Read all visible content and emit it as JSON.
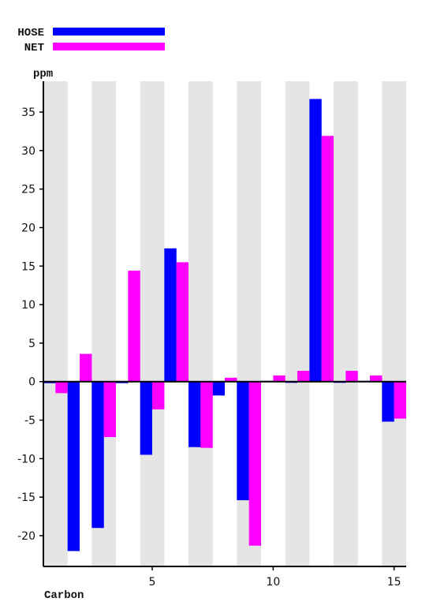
{
  "chart_data": {
    "type": "bar",
    "xlabel": "Carbon",
    "ylabel": "ppm",
    "x": [
      1,
      2,
      3,
      4,
      5,
      6,
      7,
      8,
      9,
      10,
      11,
      12,
      13,
      14,
      15
    ],
    "xticks": [
      5,
      10,
      15
    ],
    "xlim": [
      0.5,
      15.5
    ],
    "ylim": [
      -24,
      39
    ],
    "yticks": [
      -20,
      -15,
      -10,
      -5,
      0,
      5,
      10,
      15,
      20,
      25,
      30,
      35
    ],
    "grid": "alternating-column-bands",
    "legend_position": "top-left",
    "series": [
      {
        "name": "HOSE",
        "color": "#0000ff",
        "values": [
          -0.2,
          -22.0,
          -19.0,
          -0.2,
          -9.5,
          17.3,
          -8.5,
          -1.8,
          -15.4,
          0.1,
          0.0,
          36.7,
          0.0,
          0.1,
          -5.2
        ]
      },
      {
        "name": "NET",
        "color": "#ff00ff",
        "values": [
          -1.5,
          3.6,
          -7.2,
          14.4,
          -3.6,
          15.5,
          -8.6,
          0.5,
          -21.3,
          0.8,
          1.4,
          31.9,
          1.4,
          0.8,
          -4.8
        ]
      }
    ]
  },
  "colors": {
    "band": "#e5e5e5",
    "axis": "#000000"
  }
}
